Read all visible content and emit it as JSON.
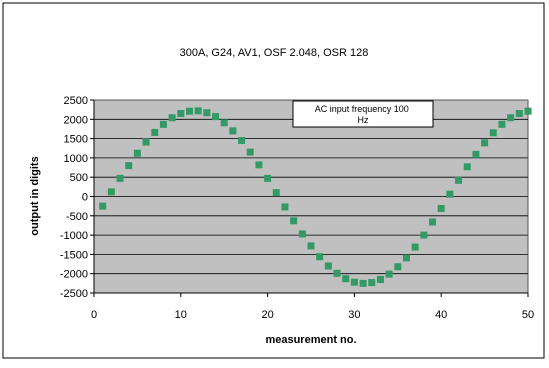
{
  "chart_data": {
    "type": "scatter",
    "title": "300A, G24, AV1, OSF 2.048, OSR 128",
    "xlabel": "measurement no.",
    "ylabel": "output in digits",
    "annotation": "AC input frequency 100 Hz",
    "xlim": [
      0,
      50
    ],
    "ylim": [
      -2500,
      2500
    ],
    "xticks": [
      0,
      10,
      20,
      30,
      40,
      50
    ],
    "yticks": [
      -2500,
      -2000,
      -1500,
      -1000,
      -500,
      0,
      500,
      1000,
      1500,
      2000,
      2500
    ],
    "grid": true,
    "marker_color": "#339966",
    "plot_background": "#c0c0c0",
    "series": [
      {
        "x": [
          1,
          2,
          3,
          4,
          5,
          6,
          7,
          8,
          9,
          10,
          11,
          12,
          13,
          14,
          15,
          16,
          17,
          18,
          19,
          20,
          21,
          22,
          23,
          24,
          25,
          26,
          27,
          28,
          29,
          30,
          31,
          32,
          33,
          34,
          35,
          36,
          37,
          38,
          39,
          40,
          41,
          42,
          43,
          44,
          45,
          46,
          47,
          48,
          49,
          50
        ],
        "values": [
          -250,
          120,
          470,
          800,
          1120,
          1410,
          1660,
          1870,
          2040,
          2150,
          2210,
          2220,
          2170,
          2070,
          1910,
          1700,
          1450,
          1150,
          820,
          470,
          100,
          -270,
          -630,
          -970,
          -1280,
          -1560,
          -1800,
          -1990,
          -2130,
          -2220,
          -2250,
          -2230,
          -2150,
          -2010,
          -1820,
          -1590,
          -1310,
          -1000,
          -660,
          -310,
          60,
          420,
          770,
          1090,
          1390,
          1650,
          1870,
          2040,
          2150,
          2210
        ]
      }
    ]
  }
}
